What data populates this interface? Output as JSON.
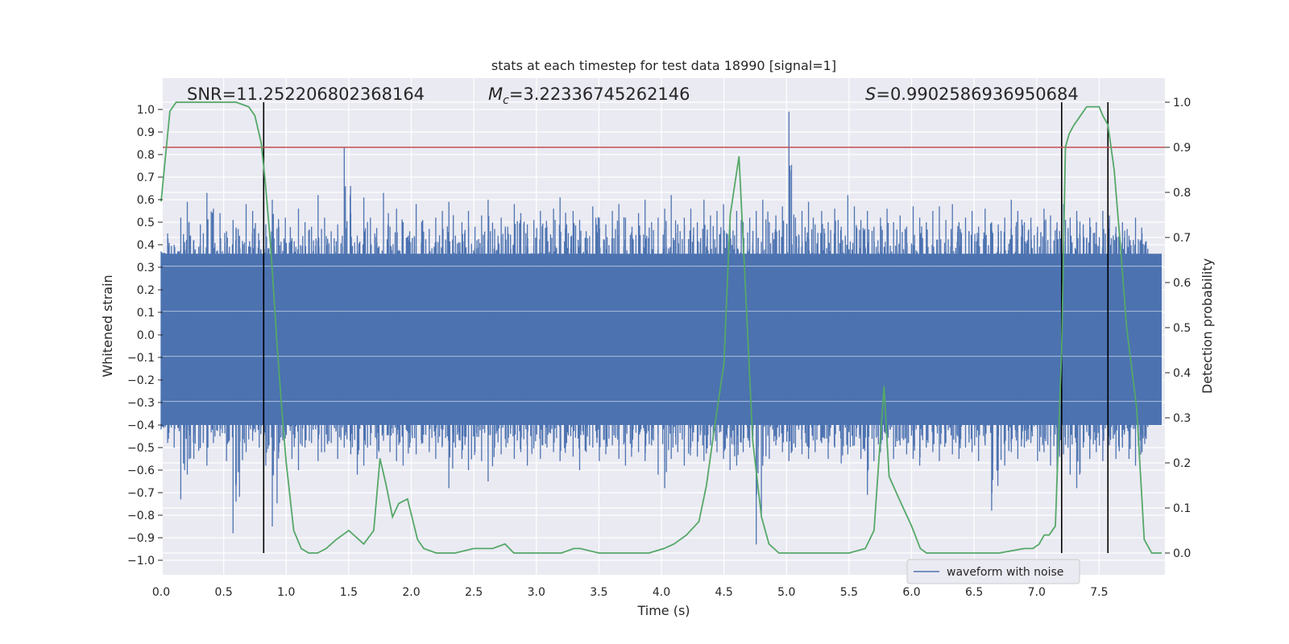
{
  "chart_data": {
    "type": "line",
    "title": "stats at each timestep for test data 18990 [signal=1]",
    "xlabel": "Time (s)",
    "ylabel": "Whitened strain",
    "y2label": "Detection probability",
    "xlim": [
      0.0,
      8.0
    ],
    "ylim": [
      -1.02,
      1.08
    ],
    "y2lim": [
      -0.045,
      1.045
    ],
    "xticks": [
      "0.0",
      "0.5",
      "1.0",
      "1.5",
      "2.0",
      "2.5",
      "3.0",
      "3.5",
      "4.0",
      "4.5",
      "5.0",
      "5.5",
      "6.0",
      "6.5",
      "7.0",
      "7.5"
    ],
    "yticks": [
      "1.0",
      "0.9",
      "0.8",
      "0.7",
      "0.6",
      "0.5",
      "0.4",
      "0.3",
      "0.2",
      "0.1",
      "0.0",
      "−0.1",
      "−0.2",
      "−0.3",
      "−0.4",
      "−0.5",
      "−0.6",
      "−0.7",
      "−0.8",
      "−0.9",
      "−1.0"
    ],
    "y2ticks": [
      "1.0",
      "0.9",
      "0.8",
      "0.7",
      "0.6",
      "0.5",
      "0.4",
      "0.3",
      "0.2",
      "0.1",
      "0.0"
    ],
    "grid": true,
    "legend_location": "lower-right",
    "annotations": {
      "snr": "SNR=11.252206802368164",
      "mc_symbol": "M",
      "mc_sub": "c",
      "mc_value": "=3.22336745262146",
      "s_symbol": "S",
      "s_value": "=0.9902586936950684"
    },
    "threshold": 0.9,
    "vertical_lines_x": [
      0.82,
      7.2,
      7.57
    ],
    "series": [
      {
        "name": "waveform with noise",
        "color": "#4c72b0",
        "envelope_max": [
          0.37,
          0.45,
          0.4,
          0.52,
          0.59,
          0.42,
          0.49,
          0.63,
          0.56,
          0.54,
          0.46,
          0.51,
          0.44,
          0.58,
          0.55,
          0.42,
          0.49,
          0.6,
          0.48,
          0.52,
          0.43,
          0.56,
          0.5,
          0.48,
          0.62,
          0.52,
          0.46,
          0.49,
          0.83,
          0.54,
          0.44,
          0.61,
          0.52,
          0.41,
          0.63,
          0.48,
          0.56,
          0.5,
          0.46,
          0.58,
          0.51,
          0.47,
          0.52,
          0.55,
          0.59,
          0.44,
          0.5,
          0.55,
          0.48,
          0.53,
          0.6,
          0.47,
          0.52,
          0.48,
          0.58,
          0.54,
          0.49,
          0.51,
          0.55,
          0.48,
          0.56,
          0.61,
          0.49,
          0.55,
          0.51,
          0.46,
          0.57,
          0.52,
          0.49,
          0.55,
          0.58,
          0.52,
          0.48,
          0.54,
          0.6,
          0.5,
          0.52,
          0.56,
          0.62,
          0.49,
          0.52,
          0.56,
          0.5,
          0.6,
          0.53,
          0.55,
          0.58,
          0.49,
          0.55,
          0.5,
          0.52,
          0.55,
          0.6,
          0.5,
          0.53,
          0.57,
          0.99,
          0.52,
          0.55,
          0.59,
          0.49,
          0.55,
          0.5,
          0.56,
          0.48,
          0.62,
          0.57,
          0.51,
          0.55,
          0.48,
          0.52,
          0.56,
          0.5,
          0.53,
          0.48,
          0.57,
          0.52,
          0.5,
          0.55,
          0.57,
          0.51,
          0.58,
          0.5,
          0.52,
          0.55,
          0.48,
          0.56,
          0.5,
          0.49,
          0.52,
          0.6,
          0.55,
          0.5,
          0.52,
          0.48,
          0.56,
          0.53,
          0.5,
          0.58,
          0.52,
          0.55,
          0.49,
          0.52,
          0.5,
          0.55,
          0.53,
          0.48,
          0.5,
          0.44,
          0.52,
          0.45,
          0.46,
          0.47
        ],
        "envelope_min": [
          -0.42,
          -0.48,
          -0.5,
          -0.73,
          -0.62,
          -0.55,
          -0.5,
          -0.58,
          -0.48,
          -0.45,
          -0.56,
          -0.88,
          -0.6,
          -0.52,
          -0.47,
          -0.5,
          -0.58,
          -0.85,
          -0.52,
          -0.46,
          -0.55,
          -0.6,
          -0.5,
          -0.48,
          -0.56,
          -0.52,
          -0.48,
          -0.55,
          -0.5,
          -0.53,
          -0.62,
          -0.58,
          -0.49,
          -0.55,
          -0.47,
          -0.52,
          -0.56,
          -0.58,
          -0.5,
          -0.53,
          -0.48,
          -0.52,
          -0.55,
          -0.49,
          -0.68,
          -0.5,
          -0.55,
          -0.6,
          -0.52,
          -0.56,
          -0.65,
          -0.5,
          -0.53,
          -0.48,
          -0.55,
          -0.52,
          -0.58,
          -0.49,
          -0.55,
          -0.5,
          -0.52,
          -0.56,
          -0.48,
          -0.54,
          -0.6,
          -0.52,
          -0.5,
          -0.56,
          -0.53,
          -0.49,
          -0.55,
          -0.58,
          -0.5,
          -0.52,
          -0.56,
          -0.49,
          -0.62,
          -0.68,
          -0.55,
          -0.52,
          -0.58,
          -0.5,
          -0.54,
          -0.56,
          -0.49,
          -0.52,
          -0.55,
          -0.6,
          -0.58,
          -0.52,
          -0.5,
          -0.93,
          -0.58,
          -0.55,
          -0.49,
          -0.52,
          -0.56,
          -0.5,
          -0.53,
          -0.55,
          -0.52,
          -0.48,
          -0.55,
          -0.5,
          -0.57,
          -0.53,
          -0.49,
          -0.55,
          -0.71,
          -0.56,
          -0.52,
          -0.5,
          -0.55,
          -0.49,
          -0.53,
          -0.55,
          -0.58,
          -0.5,
          -0.52,
          -0.56,
          -0.48,
          -0.53,
          -0.55,
          -0.5,
          -0.52,
          -0.56,
          -0.49,
          -0.78,
          -0.6,
          -0.58,
          -0.52,
          -0.55,
          -0.5,
          -0.48,
          -0.56,
          -0.52,
          -0.58,
          -0.65,
          -0.53,
          -0.62,
          -0.68,
          -0.5,
          -0.55,
          -0.52,
          -0.56,
          -0.49,
          -0.55,
          -0.5,
          -0.55,
          -0.58,
          -0.52
        ],
        "band_max": 0.36,
        "band_min": -0.4
      },
      {
        "color": "#55a868",
        "x": [
          0.0,
          0.07,
          0.12,
          0.2,
          0.3,
          0.4,
          0.5,
          0.6,
          0.7,
          0.75,
          0.8,
          0.83,
          0.87,
          0.9,
          0.93,
          0.97,
          1.0,
          1.06,
          1.12,
          1.18,
          1.25,
          1.32,
          1.4,
          1.5,
          1.62,
          1.7,
          1.75,
          1.8,
          1.85,
          1.9,
          1.97,
          2.05,
          2.1,
          2.2,
          2.35,
          2.5,
          2.65,
          2.75,
          2.82,
          2.9,
          3.0,
          3.2,
          3.3,
          3.35,
          3.5,
          3.7,
          3.9,
          4.02,
          4.1,
          4.2,
          4.3,
          4.36,
          4.42,
          4.5,
          4.55,
          4.62,
          4.67,
          4.73,
          4.8,
          4.86,
          4.94,
          5.0,
          5.1,
          5.3,
          5.5,
          5.63,
          5.7,
          5.78,
          5.82,
          5.9,
          6.0,
          6.07,
          6.12,
          6.25,
          6.45,
          6.7,
          6.9,
          6.97,
          7.02,
          7.06,
          7.1,
          7.15,
          7.2,
          7.23,
          7.26,
          7.3,
          7.35,
          7.4,
          7.45,
          7.5,
          7.53,
          7.57,
          7.62,
          7.67,
          7.72,
          7.8,
          7.86,
          7.92,
          8.0
        ],
        "y": [
          0.78,
          0.98,
          1.0,
          1.0,
          1.0,
          1.0,
          1.0,
          1.0,
          0.99,
          0.97,
          0.91,
          0.83,
          0.7,
          0.58,
          0.45,
          0.3,
          0.2,
          0.05,
          0.01,
          0.0,
          0.0,
          0.01,
          0.03,
          0.05,
          0.02,
          0.05,
          0.21,
          0.15,
          0.08,
          0.11,
          0.12,
          0.03,
          0.01,
          0.0,
          0.0,
          0.01,
          0.01,
          0.02,
          0.0,
          0.0,
          0.0,
          0.0,
          0.01,
          0.01,
          0.0,
          0.0,
          0.0,
          0.01,
          0.02,
          0.04,
          0.07,
          0.15,
          0.27,
          0.42,
          0.75,
          0.88,
          0.6,
          0.25,
          0.08,
          0.02,
          0.0,
          0.0,
          0.0,
          0.0,
          0.0,
          0.01,
          0.05,
          0.37,
          0.17,
          0.12,
          0.06,
          0.01,
          0.0,
          0.0,
          0.0,
          0.0,
          0.01,
          0.01,
          0.02,
          0.04,
          0.04,
          0.06,
          0.45,
          0.9,
          0.93,
          0.95,
          0.97,
          0.99,
          0.99,
          0.99,
          0.97,
          0.95,
          0.85,
          0.68,
          0.5,
          0.32,
          0.03,
          0.0,
          0.0
        ]
      }
    ]
  }
}
